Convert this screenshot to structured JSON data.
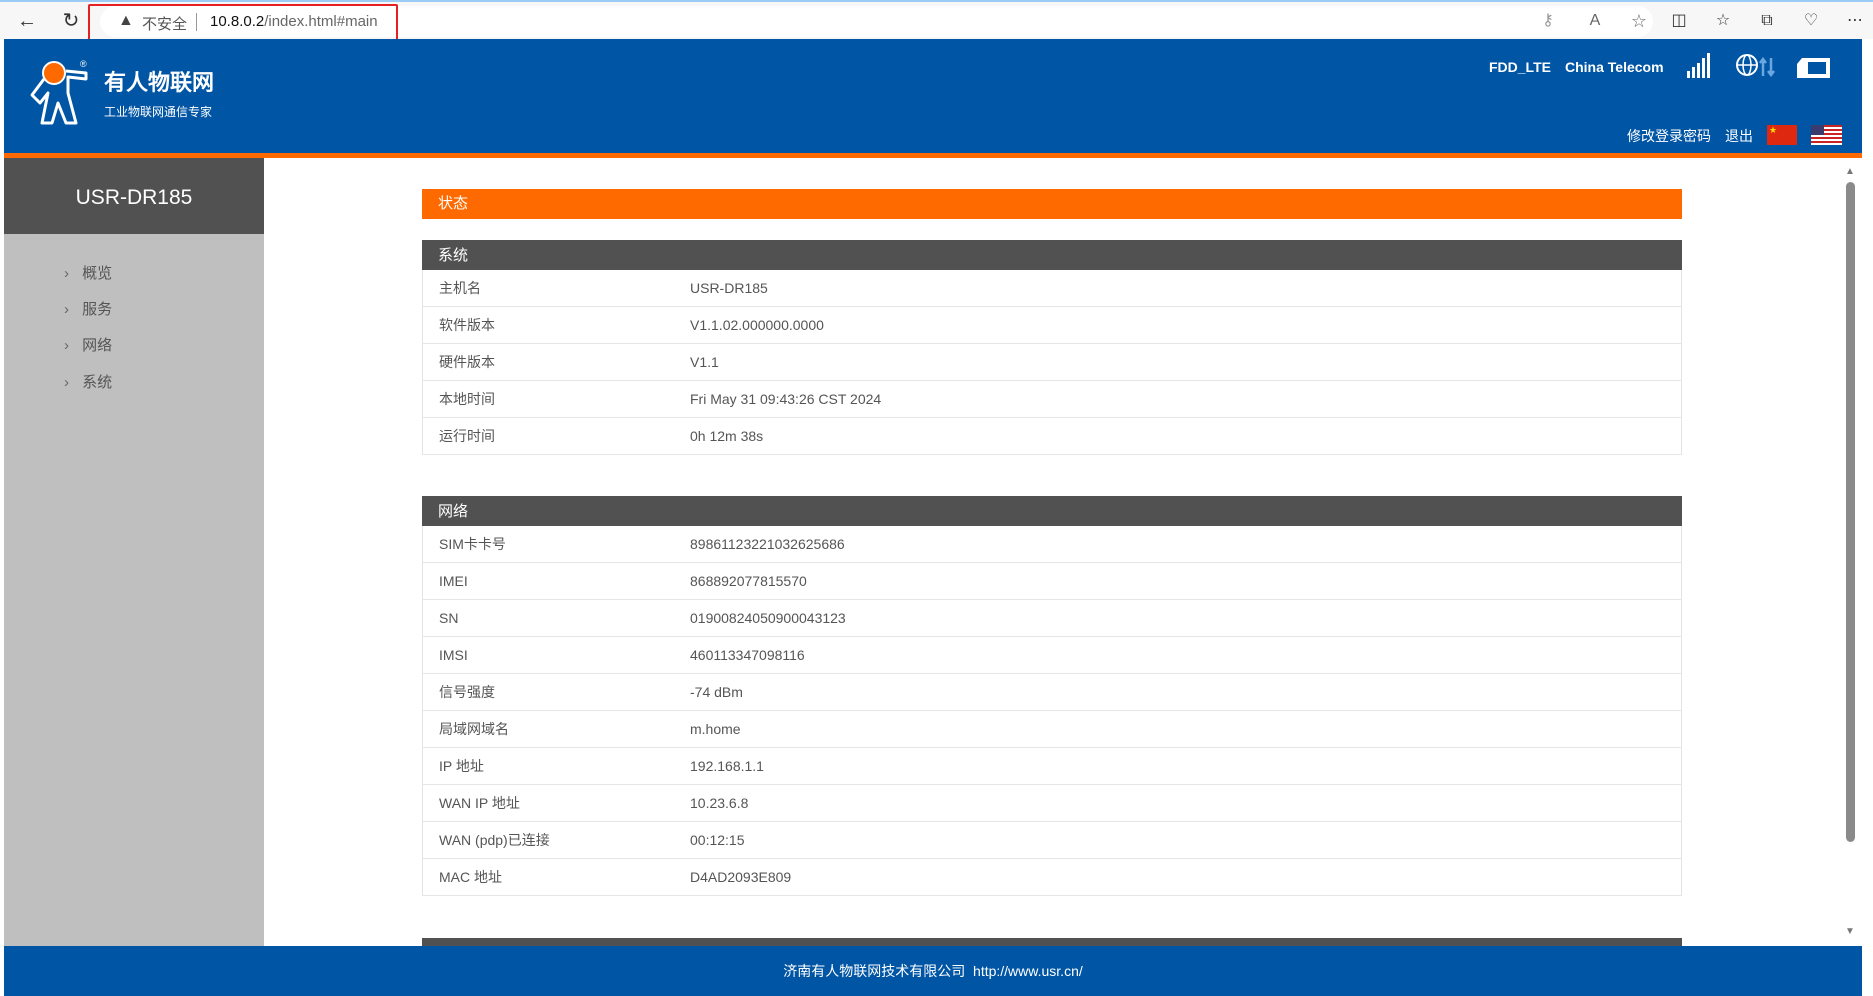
{
  "browser": {
    "security_label": "不安全",
    "url_host": "10.8.0.2",
    "url_path": "/index.html#main"
  },
  "header": {
    "brand": "有人物联网",
    "slogan": "工业物联网通信专家",
    "network_mode": "FDD_LTE",
    "operator": "China Telecom",
    "change_password": "修改登录密码",
    "logout": "退出",
    "signal_bars": 5
  },
  "sidebar": {
    "title": "USR-DR185",
    "items": [
      {
        "label": "概览"
      },
      {
        "label": "服务"
      },
      {
        "label": "网络"
      },
      {
        "label": "系统"
      }
    ]
  },
  "main": {
    "status_title": "状态",
    "system": {
      "title": "系统",
      "rows": [
        {
          "k": "主机名",
          "v": "USR-DR185"
        },
        {
          "k": "软件版本",
          "v": "V1.1.02.000000.0000"
        },
        {
          "k": "硬件版本",
          "v": "V1.1"
        },
        {
          "k": "本地时间",
          "v": "Fri May 31 09:43:26 CST 2024"
        },
        {
          "k": "运行时间",
          "v": "0h 12m 38s"
        }
      ]
    },
    "network": {
      "title": "网络",
      "rows": [
        {
          "k": "SIM卡卡号",
          "v": "89861123221032625686"
        },
        {
          "k": "IMEI",
          "v": "868892077815570"
        },
        {
          "k": "SN",
          "v": "01900824050900043123"
        },
        {
          "k": "IMSI",
          "v": "460113347098116"
        },
        {
          "k": "信号强度",
          "v": "-74 dBm"
        },
        {
          "k": "局域网域名",
          "v": "m.home"
        },
        {
          "k": "IP 地址",
          "v": "192.168.1.1"
        },
        {
          "k": "WAN IP 地址",
          "v": "10.23.6.8"
        },
        {
          "k": "WAN (pdp)已连接",
          "v": "00:12:15"
        },
        {
          "k": "MAC 地址",
          "v": "D4AD2093E809"
        }
      ]
    }
  },
  "footer": {
    "company": "济南有人物联网技术有限公司",
    "url": "http://www.usr.cn/"
  },
  "colors": {
    "header_blue": "#0055a5",
    "accent_orange": "#ff6a00",
    "dark_gray": "#515151",
    "sidebar_gray": "#bfbfbf"
  }
}
